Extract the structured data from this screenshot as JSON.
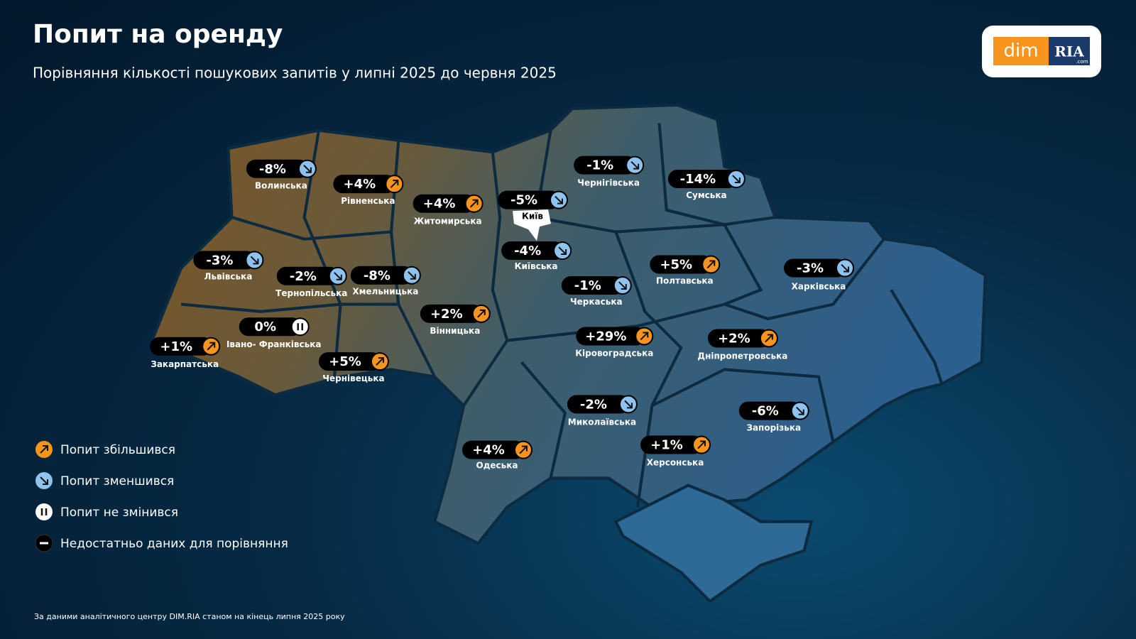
{
  "header": {
    "title": "Попит на оренду",
    "subtitle": "Порівняння кількості пошукових запитів у липні 2025 до червня 2025"
  },
  "logo": {
    "left": "dim",
    "right": "RIA",
    "suffix": ".com"
  },
  "regions": [
    {
      "name": "Волинська",
      "value": -8,
      "value_label": "-8%"
    },
    {
      "name": "Рівненська",
      "value": 4,
      "value_label": "+4%"
    },
    {
      "name": "Житомирська",
      "value": 4,
      "value_label": "+4%"
    },
    {
      "name": "Київ",
      "value": -5,
      "value_label": "-5%"
    },
    {
      "name": "Чернігівська",
      "value": -1,
      "value_label": "-1%"
    },
    {
      "name": "Сумська",
      "value": -14,
      "value_label": "-14%"
    },
    {
      "name": "Львівська",
      "value": -3,
      "value_label": "-3%"
    },
    {
      "name": "Тернопільська",
      "value": -2,
      "value_label": "-2%"
    },
    {
      "name": "Хмельницька",
      "value": -8,
      "value_label": "-8%"
    },
    {
      "name": "Київська",
      "value": -4,
      "value_label": "-4%"
    },
    {
      "name": "Полтавська",
      "value": 5,
      "value_label": "+5%"
    },
    {
      "name": "Харківська",
      "value": -3,
      "value_label": "-3%"
    },
    {
      "name": "Черкаська",
      "value": -1,
      "value_label": "-1%"
    },
    {
      "name": "Вінницька",
      "value": 2,
      "value_label": "+2%"
    },
    {
      "name": "Івано- Франківська",
      "value": 0,
      "value_label": "0%"
    },
    {
      "name": "Закарпатська",
      "value": 1,
      "value_label": "+1%"
    },
    {
      "name": "Чернівецька",
      "value": 5,
      "value_label": "+5%"
    },
    {
      "name": "Кіровоградська",
      "value": 29,
      "value_label": "+29%"
    },
    {
      "name": "Дніпропетровська",
      "value": 2,
      "value_label": "+2%"
    },
    {
      "name": "Миколаївська",
      "value": -2,
      "value_label": "-2%"
    },
    {
      "name": "Запорізька",
      "value": -6,
      "value_label": "-6%"
    },
    {
      "name": "Херсонська",
      "value": 1,
      "value_label": "+1%"
    },
    {
      "name": "Одеська",
      "value": 4,
      "value_label": "+4%"
    }
  ],
  "legend": [
    "Попит збільшився",
    "Попит зменшився",
    "Попит не змінився",
    "Недостатньо даних для порівняння"
  ],
  "footer": "За даними аналітичного центру DIM.RIA станом на кінець липня 2025 року"
}
